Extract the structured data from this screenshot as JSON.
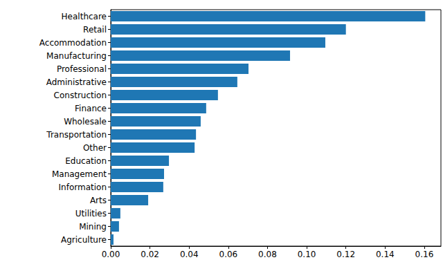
{
  "chart_data": {
    "type": "bar",
    "orientation": "horizontal",
    "color": "#1f77b4",
    "grid": false,
    "categories": [
      "Healthcare",
      "Retail",
      "Accommodation",
      "Manufacturing",
      "Professional",
      "Administrative",
      "Construction",
      "Finance",
      "Wholesale",
      "Transportation",
      "Other",
      "Education",
      "Management",
      "Information",
      "Arts",
      "Utilities",
      "Mining",
      "Agriculture"
    ],
    "values": [
      0.1605,
      0.12,
      0.1095,
      0.0915,
      0.0703,
      0.0646,
      0.0547,
      0.0487,
      0.0459,
      0.0435,
      0.0428,
      0.0297,
      0.0272,
      0.0268,
      0.0191,
      0.0049,
      0.0042,
      0.0014
    ],
    "xlim": [
      0,
      0.1685
    ],
    "xticks": [
      {
        "value": 0,
        "label": "0.00"
      },
      {
        "value": 0.02,
        "label": "0.02"
      },
      {
        "value": 0.04,
        "label": "0.04"
      },
      {
        "value": 0.06,
        "label": "0.06"
      },
      {
        "value": 0.08,
        "label": "0.08"
      },
      {
        "value": 0.1,
        "label": "0.10"
      },
      {
        "value": 0.12,
        "label": "0.12"
      },
      {
        "value": 0.14,
        "label": "0.14"
      },
      {
        "value": 0.16,
        "label": "0.16"
      }
    ]
  }
}
